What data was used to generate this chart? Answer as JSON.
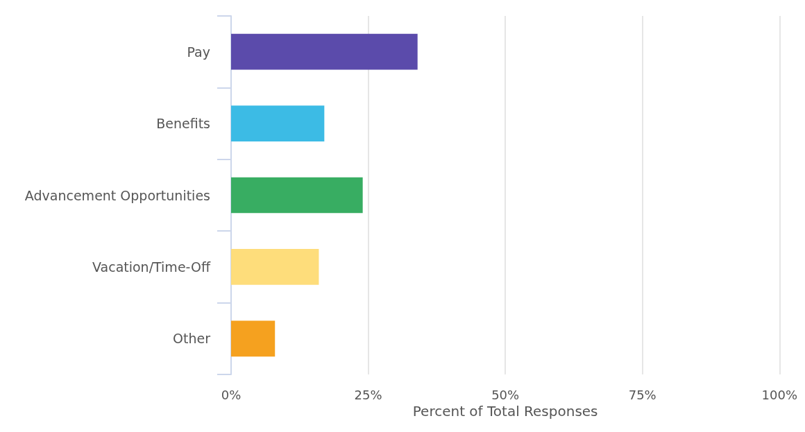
{
  "chart_data": {
    "type": "bar",
    "orientation": "horizontal",
    "xlabel": "Percent of Total Responses",
    "categories": [
      "Pay",
      "Benefits",
      "Advancement Opportunities",
      "Vacation/Time-Off",
      "Other"
    ],
    "values": [
      34,
      17,
      24,
      16,
      8
    ],
    "colors": [
      "#5b4bab",
      "#3cbbe5",
      "#38ad62",
      "#fedd7b",
      "#f5a11f"
    ],
    "xlim": [
      0,
      100
    ],
    "xticks": [
      {
        "value": 0,
        "label": "0%"
      },
      {
        "value": 25,
        "label": "25%"
      },
      {
        "value": 50,
        "label": "50%"
      },
      {
        "value": 75,
        "label": "75%"
      },
      {
        "value": 100,
        "label": "100%"
      }
    ],
    "grid": "x"
  }
}
